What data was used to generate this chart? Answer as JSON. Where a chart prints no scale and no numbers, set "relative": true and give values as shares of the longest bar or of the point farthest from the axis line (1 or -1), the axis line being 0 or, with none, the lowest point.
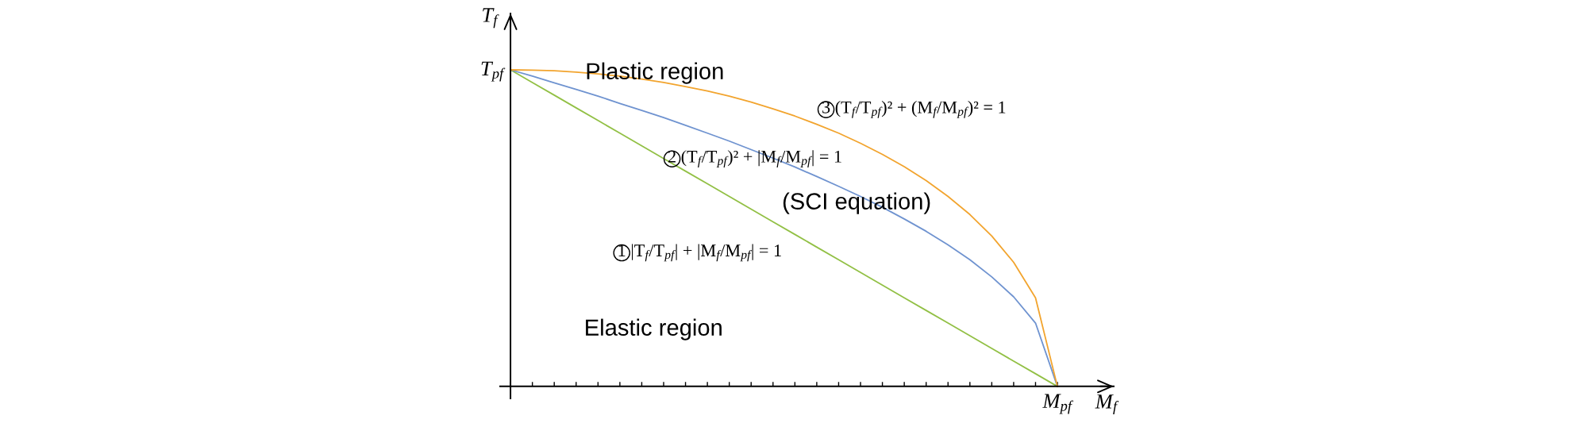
{
  "chart_data": {
    "type": "line",
    "relative": true,
    "xlabel": "M$_{f}$",
    "ylabel": "T$_{f}$",
    "categories": [
      null,
      null,
      null,
      null,
      null,
      null,
      null,
      null,
      null,
      null,
      null,
      null,
      null,
      null,
      null,
      null,
      null,
      null,
      null,
      null,
      null,
      null,
      null,
      null,
      null,
      null
    ],
    "series": [
      {
        "name": "1 |T$_{f}$/T$_{pf}$| + |M$_{f}$/M$_{pf}$| = 1",
        "color": "#92c045",
        "values": [
          1,
          0.96,
          0.92,
          0.88,
          0.84,
          0.8,
          0.76,
          0.72,
          0.68,
          0.64,
          0.6,
          0.56,
          0.52,
          0.48,
          0.44,
          0.4,
          0.36,
          0.32,
          0.28,
          0.24,
          0.2,
          0.16,
          0.12,
          0.08,
          0.04,
          0
        ]
      },
      {
        "name": "2 (T$_{f}$/T$_{pf}$)² + |M$_{f}$/M$_{pf}$| = 1",
        "color": "#6f93d0",
        "values": [
          1,
          0.98,
          0.959,
          0.938,
          0.917,
          0.894,
          0.872,
          0.849,
          0.825,
          0.8,
          0.775,
          0.748,
          0.721,
          0.693,
          0.663,
          0.632,
          0.6,
          0.566,
          0.529,
          0.49,
          0.447,
          0.4,
          0.346,
          0.283,
          0.2,
          0
        ]
      },
      {
        "name": "3 (T$_{f}$/T$_{pf}$)² + (M$_{f}$/M$_{pf}$)² = 1",
        "color": "#f2a42e",
        "values": [
          1,
          0.999,
          0.997,
          0.993,
          0.987,
          0.98,
          0.971,
          0.96,
          0.947,
          0.933,
          0.917,
          0.898,
          0.877,
          0.854,
          0.828,
          0.8,
          0.768,
          0.733,
          0.694,
          0.65,
          0.6,
          0.543,
          0.475,
          0.392,
          0.28,
          0
        ]
      }
    ],
    "annotations": [
      "Plastic region",
      "(SCI equation)",
      "Elastic region",
      "T$_{pf}$",
      {
        "text": "M$_{pf}$",
        "y": 0
      }
    ]
  }
}
